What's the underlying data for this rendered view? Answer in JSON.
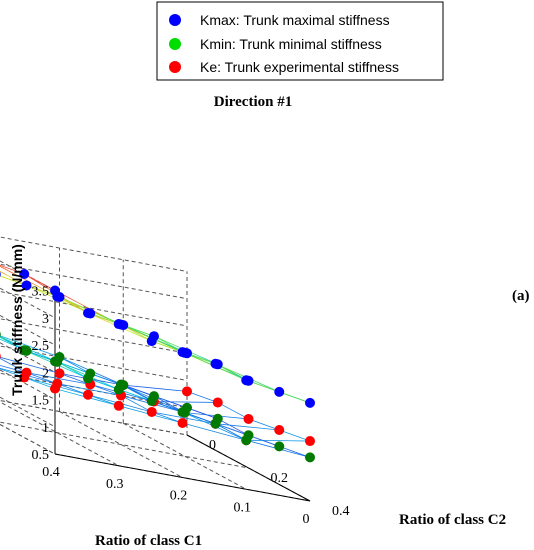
{
  "chart_data": {
    "type": "scatter",
    "title": "Direction #1",
    "annotation": "(a)",
    "xlabel": "Ratio of class C1",
    "ylabel": "Ratio of class C2",
    "zlabel": "Trunk stiffness (N/mm)",
    "x_ticks": [
      "0.4",
      "0.3",
      "0.2",
      "0.1",
      "0"
    ],
    "y_ticks": [
      "0",
      "0.2",
      "0.4"
    ],
    "z_ticks": [
      "0.5",
      "1",
      "1.5",
      "2",
      "2.5",
      "3",
      "3.5"
    ],
    "zlim": [
      0.5,
      3.5
    ],
    "grid": true,
    "legend_position": "top",
    "colors": {
      "kmax": "#0000ff",
      "kmin": "#00dd00",
      "ke": "#ff0000",
      "kmin_visible": "#007a00"
    },
    "series": [
      {
        "name": "Kmax: Trunk maximal stiffness",
        "color": "#0000ff",
        "rows": [
          {
            "c1": 0.4,
            "c2": [
              0,
              0.1,
              0.2,
              0.3,
              0.4
            ],
            "z": [
              3.2,
              3.3,
              3.4,
              3.5,
              3.5
            ]
          },
          {
            "c1": 0.3,
            "c2": [
              0,
              0.1,
              0.2,
              0.3,
              0.4
            ],
            "z": [
              2.8,
              2.9,
              3.0,
              3.0,
              3.1
            ]
          },
          {
            "c1": 0.2,
            "c2": [
              0,
              0.1,
              0.2,
              0.3,
              0.4
            ],
            "z": [
              2.6,
              2.6,
              2.7,
              2.7,
              2.8
            ]
          },
          {
            "c1": 0.1,
            "c2": [
              0,
              0.1,
              0.2,
              0.3,
              0.4
            ],
            "z": [
              2.3,
              2.4,
              2.4,
              2.5,
              2.5
            ]
          },
          {
            "c1": 0.0,
            "c2": [
              0,
              0.1,
              0.2,
              0.3,
              0.4
            ],
            "z": [
              2.0,
              2.1,
              2.1,
              2.2,
              2.3
            ]
          }
        ]
      },
      {
        "name": "Kmin: Trunk minimal stiffness",
        "color": "#00dd00",
        "rows": [
          {
            "c1": 0.4,
            "c2": [
              0,
              0.1,
              0.2,
              0.3,
              0.4
            ],
            "z": [
              1.9,
              2.0,
              2.1,
              2.1,
              2.2
            ]
          },
          {
            "c1": 0.3,
            "c2": [
              0,
              0.1,
              0.2,
              0.3,
              0.4
            ],
            "z": [
              1.7,
              1.7,
              1.8,
              1.8,
              1.9
            ]
          },
          {
            "c1": 0.2,
            "c2": [
              0,
              0.1,
              0.2,
              0.3,
              0.4
            ],
            "z": [
              1.5,
              1.5,
              1.6,
              1.6,
              1.7
            ]
          },
          {
            "c1": 0.1,
            "c2": [
              0,
              0.1,
              0.2,
              0.3,
              0.4
            ],
            "z": [
              1.2,
              1.3,
              1.3,
              1.4,
              1.4
            ]
          },
          {
            "c1": 0.0,
            "c2": [
              0,
              0.1,
              0.2,
              0.3,
              0.4
            ],
            "z": [
              1.0,
              1.1,
              1.1,
              1.2,
              1.3
            ]
          }
        ]
      },
      {
        "name": "Ke: Trunk experimental stiffness",
        "color": "#ff0000",
        "rows": [
          {
            "c1": 0.4,
            "c2": [
              0,
              0.1,
              0.2,
              0.3,
              0.4
            ],
            "z": [
              1.3,
              1.4,
              1.5,
              1.6,
              1.7
            ]
          },
          {
            "c1": 0.3,
            "c2": [
              0,
              0.1,
              0.2,
              0.3,
              0.4
            ],
            "z": [
              1.3,
              1.3,
              1.4,
              1.5,
              1.6
            ]
          },
          {
            "c1": 0.2,
            "c2": [
              0,
              0.1,
              0.2,
              0.3,
              0.4
            ],
            "z": [
              1.2,
              1.3,
              1.4,
              1.4,
              1.5
            ]
          },
          {
            "c1": 0.1,
            "c2": [
              0,
              0.1,
              0.2,
              0.3,
              0.4
            ],
            "z": [
              1.2,
              1.2,
              1.3,
              1.4,
              1.4
            ]
          },
          {
            "c1": 0.0,
            "c2": [
              0,
              0.1,
              0.2,
              0.3,
              0.4
            ],
            "z": [
              1.3,
              1.4,
              1.4,
              1.5,
              1.6
            ]
          }
        ]
      }
    ]
  }
}
